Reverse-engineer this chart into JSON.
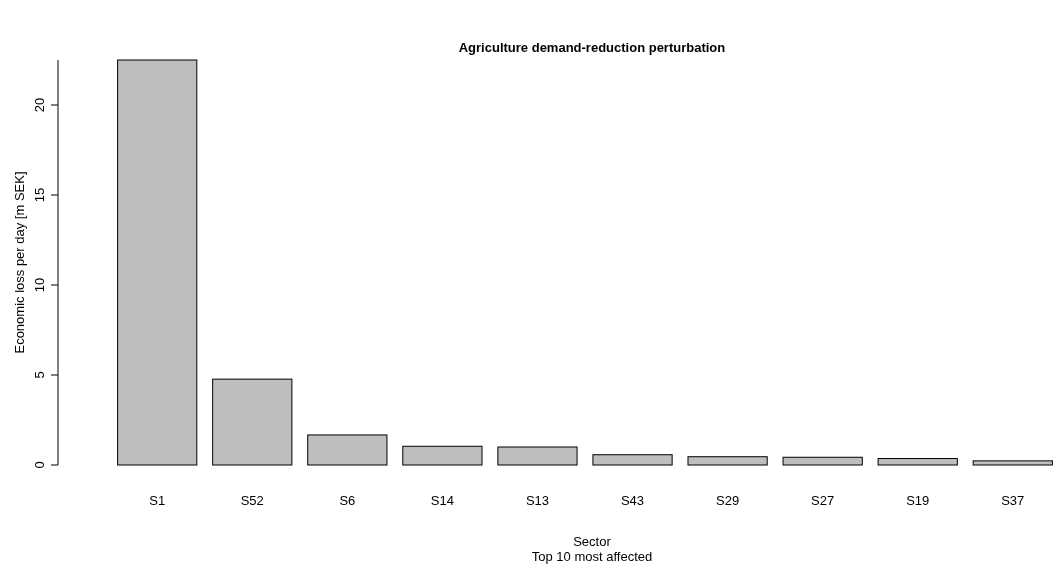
{
  "chart_data": {
    "type": "bar",
    "title": "Agriculture demand-reduction perturbation",
    "xlabel": "Sector\nTop 10 most affected",
    "ylabel": "Economic loss per day [m SEK]",
    "categories": [
      "S1",
      "S52",
      "S6",
      "S14",
      "S13",
      "S43",
      "S29",
      "S27",
      "S19",
      "S37"
    ],
    "values": [
      22.5,
      4.77,
      1.67,
      1.04,
      1.0,
      0.57,
      0.46,
      0.43,
      0.36,
      0.23
    ],
    "color": "#bebebe",
    "ylim": [
      0,
      22.5
    ],
    "yticks": [
      0,
      5,
      10,
      15,
      20
    ],
    "grid": false
  }
}
